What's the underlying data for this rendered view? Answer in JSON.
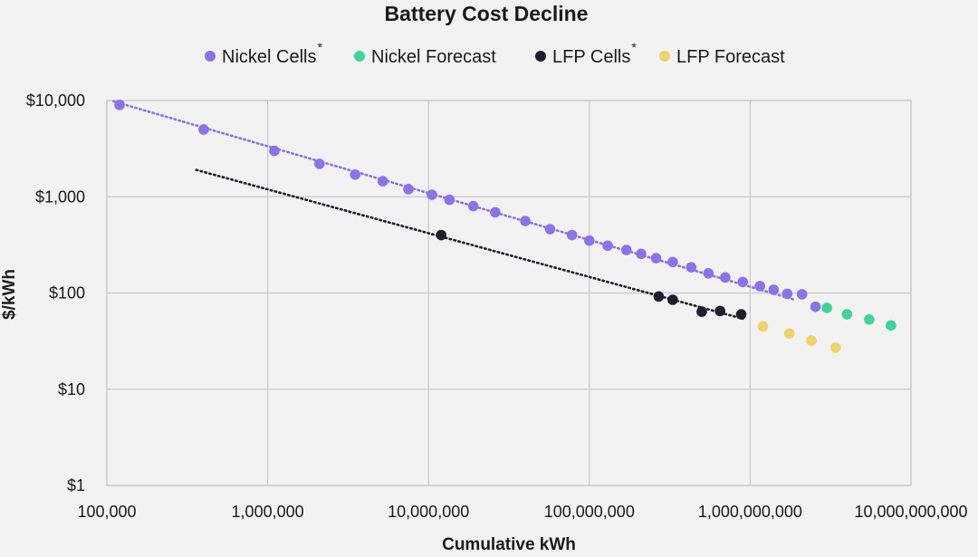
{
  "chart_data": {
    "type": "scatter",
    "title": "Battery Cost Decline",
    "xlabel": "Cumulative kWh",
    "ylabel": "$/kWh",
    "xscale": "log",
    "yscale": "log",
    "xlim": [
      100000,
      10000000000
    ],
    "ylim": [
      1,
      10000
    ],
    "grid": true,
    "legend_position": "top",
    "x_ticks": [
      "100,000",
      "1,000,000",
      "10,000,000",
      "100,000,000",
      "1,000,000,000",
      "10,000,000,000"
    ],
    "y_ticks": [
      "$1",
      "$10",
      "$100",
      "$1,000",
      "$10,000"
    ],
    "series": [
      {
        "name": "Nickel Cells",
        "legend_suffix": "*",
        "color": "#8b72e8",
        "x": [
          120000,
          400000,
          1100000,
          2100000,
          3500000,
          5200000,
          7500000,
          10500000,
          13500000,
          19000000,
          26000000,
          40000000,
          57000000,
          78000000,
          100000000,
          130000000,
          170000000,
          210000000,
          260000000,
          330000000,
          430000000,
          550000000,
          700000000,
          900000000,
          1150000000,
          1400000000,
          1700000000,
          2100000000,
          2550000000
        ],
        "y": [
          9000,
          5000,
          3000,
          2200,
          1700,
          1450,
          1200,
          1050,
          930,
          800,
          690,
          560,
          460,
          400,
          350,
          310,
          280,
          255,
          230,
          210,
          185,
          160,
          145,
          130,
          118,
          108,
          98,
          97,
          72
        ]
      },
      {
        "name": "Nickel Forecast",
        "color": "#3dd598",
        "x": [
          3000000000,
          4000000000,
          5500000000,
          7500000000
        ],
        "y": [
          70,
          60,
          53,
          46
        ]
      },
      {
        "name": "LFP Cells",
        "legend_suffix": "*",
        "color": "#1e1e2e",
        "x": [
          12000000,
          270000000,
          330000000,
          500000000,
          650000000,
          880000000
        ],
        "y": [
          400,
          92,
          85,
          64,
          65,
          60
        ]
      },
      {
        "name": "LFP Forecast",
        "color": "#f0d268",
        "x": [
          1200000000,
          1750000000,
          2400000000,
          3400000000
        ],
        "y": [
          45,
          38,
          32,
          27
        ]
      }
    ],
    "trendlines": [
      {
        "series": "Nickel Cells",
        "style": "dotted",
        "color": "#8b72e8",
        "x": [
          110000,
          1900000000
        ],
        "y": [
          9800,
          85
        ]
      },
      {
        "series": "LFP Cells",
        "style": "dotted",
        "color": "#1e1e2e",
        "x": [
          360000,
          900000000
        ],
        "y": [
          1900,
          54
        ]
      }
    ]
  }
}
